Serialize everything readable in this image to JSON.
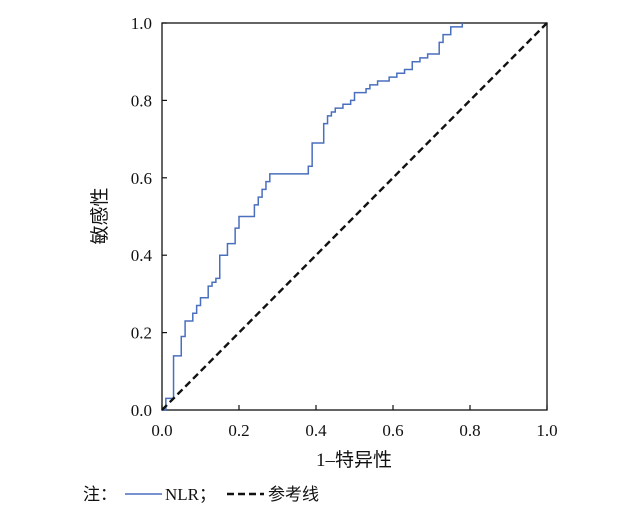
{
  "chart_data": {
    "type": "line",
    "title": "",
    "xlabel": "1–特异性",
    "ylabel": "敏感性",
    "xlim": [
      0.0,
      1.0
    ],
    "ylim": [
      0.0,
      1.0
    ],
    "xticks": [
      "0.0",
      "0.2",
      "0.4",
      "0.6",
      "0.8",
      "1.0"
    ],
    "yticks": [
      "0.0",
      "0.2",
      "0.4",
      "0.6",
      "0.8",
      "1.0"
    ],
    "grid": false,
    "legend_position": "bottom-left, below plot",
    "series": [
      {
        "name": "NLR",
        "color": "#4a6fbf",
        "style": "solid-step",
        "x": [
          0.0,
          0.01,
          0.01,
          0.03,
          0.03,
          0.05,
          0.05,
          0.06,
          0.06,
          0.08,
          0.08,
          0.09,
          0.09,
          0.1,
          0.1,
          0.12,
          0.12,
          0.13,
          0.13,
          0.14,
          0.14,
          0.15,
          0.15,
          0.17,
          0.17,
          0.19,
          0.19,
          0.2,
          0.2,
          0.24,
          0.24,
          0.25,
          0.25,
          0.26,
          0.26,
          0.27,
          0.27,
          0.28,
          0.28,
          0.29,
          0.29,
          0.38,
          0.38,
          0.39,
          0.39,
          0.42,
          0.42,
          0.43,
          0.43,
          0.44,
          0.44,
          0.45,
          0.45,
          0.47,
          0.47,
          0.49,
          0.49,
          0.5,
          0.5,
          0.53,
          0.53,
          0.54,
          0.54,
          0.56,
          0.56,
          0.59,
          0.59,
          0.61,
          0.61,
          0.63,
          0.63,
          0.65,
          0.65,
          0.67,
          0.67,
          0.69,
          0.69,
          0.72,
          0.72,
          0.73,
          0.73,
          0.75,
          0.75,
          0.78,
          0.78
        ],
        "y": [
          0.0,
          0.0,
          0.03,
          0.03,
          0.14,
          0.14,
          0.19,
          0.19,
          0.23,
          0.23,
          0.25,
          0.25,
          0.27,
          0.27,
          0.29,
          0.29,
          0.32,
          0.32,
          0.33,
          0.33,
          0.34,
          0.34,
          0.4,
          0.4,
          0.43,
          0.43,
          0.47,
          0.47,
          0.5,
          0.5,
          0.53,
          0.53,
          0.55,
          0.55,
          0.57,
          0.57,
          0.59,
          0.59,
          0.61,
          0.61,
          0.61,
          0.61,
          0.63,
          0.63,
          0.69,
          0.69,
          0.74,
          0.74,
          0.76,
          0.76,
          0.77,
          0.77,
          0.78,
          0.78,
          0.79,
          0.79,
          0.8,
          0.8,
          0.82,
          0.82,
          0.83,
          0.83,
          0.84,
          0.84,
          0.85,
          0.85,
          0.86,
          0.86,
          0.87,
          0.87,
          0.88,
          0.88,
          0.9,
          0.9,
          0.91,
          0.91,
          0.92,
          0.92,
          0.95,
          0.95,
          0.97,
          0.97,
          0.99,
          0.99,
          1.0
        ]
      },
      {
        "name": "参考线",
        "color": "#111111",
        "style": "dashed",
        "x": [
          0.0,
          1.0
        ],
        "y": [
          0.0,
          1.0
        ]
      }
    ]
  },
  "note": {
    "prefix": "注：",
    "nlr_label": "NLR；",
    "ref_label": "参考线"
  }
}
